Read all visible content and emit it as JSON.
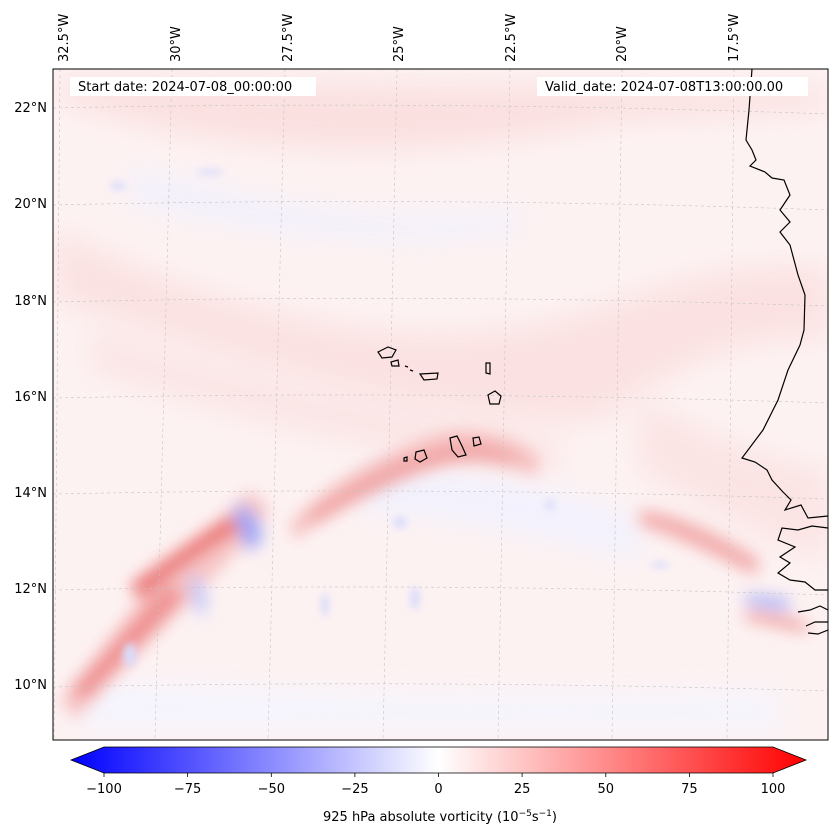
{
  "map": {
    "variable_label": "925 hPa absolute vorticity (10",
    "variable_unit_exp": "−5",
    "variable_unit_mid": "s",
    "variable_unit_exp2": "−1",
    "variable_unit_close": ")",
    "start_date": "Start date: 2024-07-08_00:00:00",
    "valid_date": "Valid_date: 2024-07-08T13:00:00.00",
    "lon_labels": [
      "32.5°W",
      "30°W",
      "27.5°W",
      "25°W",
      "22.5°W",
      "20°W",
      "17.5°W"
    ],
    "lat_labels": [
      "22°N",
      "20°N",
      "18°N",
      "16°N",
      "14°N",
      "12°N",
      "10°N"
    ],
    "colorbar": {
      "min": -100,
      "max": 100,
      "ticks": [
        "−100",
        "−75",
        "−50",
        "−25",
        "0",
        "25",
        "50",
        "75",
        "100"
      ],
      "neg_color": "#0000ff",
      "pos_color": "#ff0000",
      "mid_color": "#ffffff"
    },
    "colors": {
      "background_pink": "#fdf1f1",
      "light_pink": "#fbdcdc",
      "mid_pink": "#f7c3c3",
      "strong_pink": "#f09a9a",
      "light_blue": "#eef0ff",
      "mid_blue": "#d8dcfb",
      "grid": "#bfbfbf",
      "coast": "#000000"
    }
  }
}
